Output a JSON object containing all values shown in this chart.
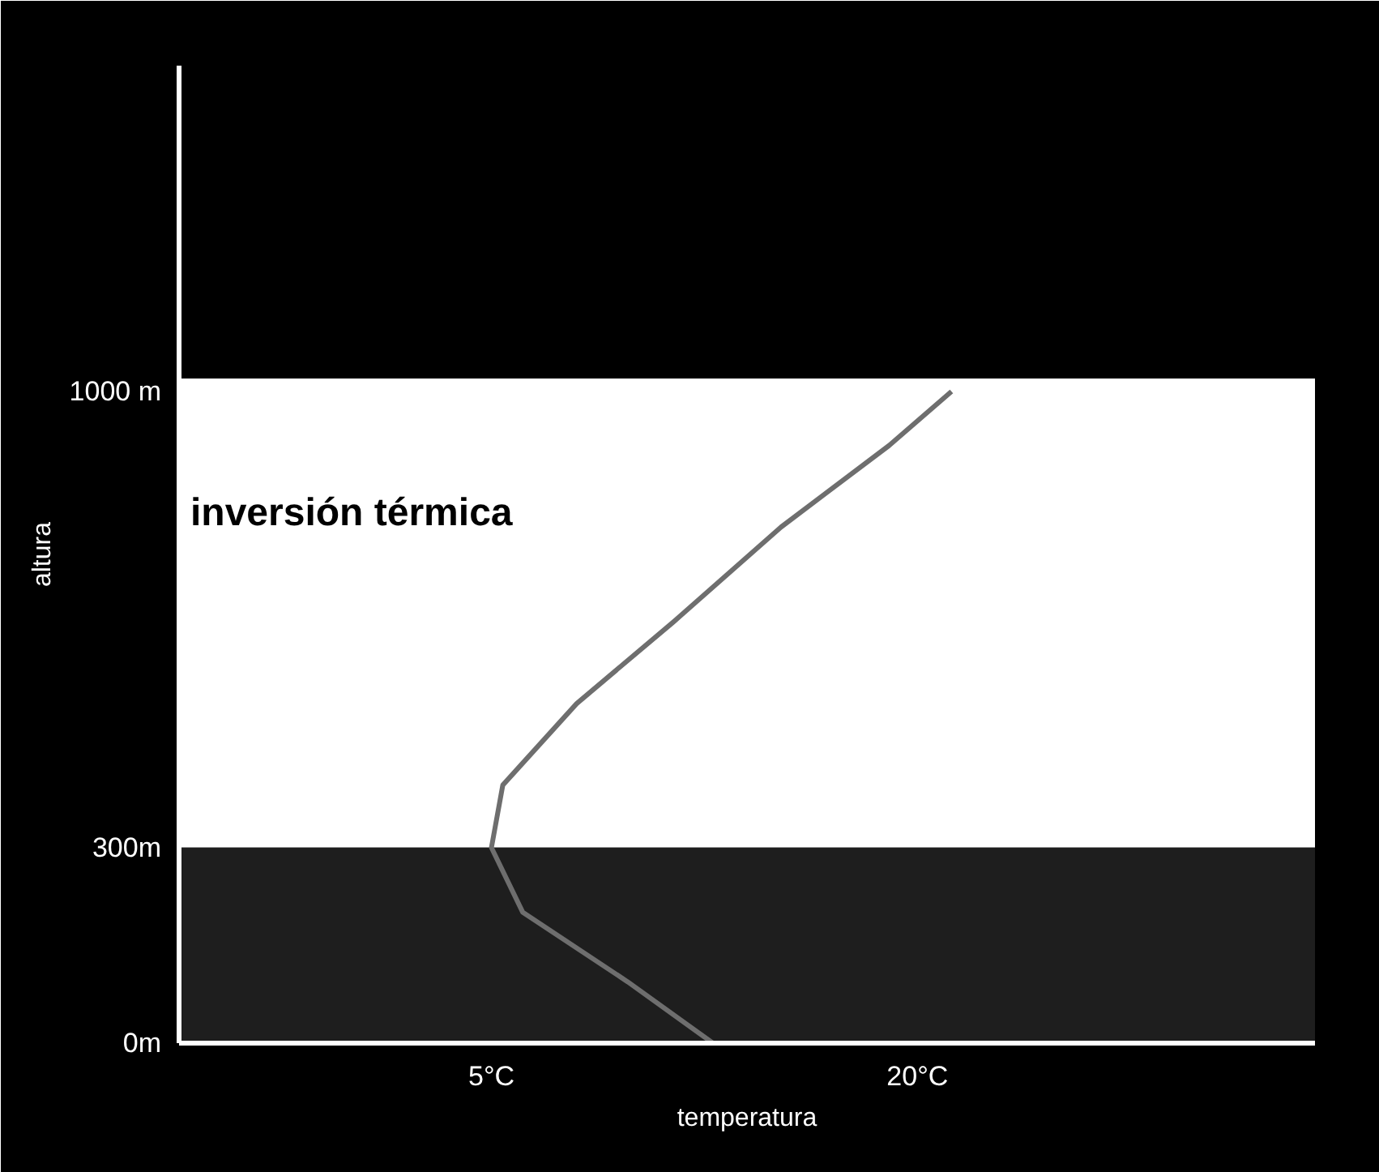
{
  "chart_data": {
    "type": "line",
    "xlabel": "temperatura",
    "ylabel": "altura",
    "x": [
      12.8,
      9.8,
      6.1,
      5,
      5.4,
      8.0,
      11.4,
      15.2,
      19.0,
      21.2
    ],
    "series": [
      {
        "color": "#6e6e6e",
        "values": [
          0,
          94,
          201,
          300,
          396,
          521,
          646,
          792,
          917,
          1000
        ]
      }
    ],
    "xlim": [
      -6,
      34
    ],
    "ylim": [
      0,
      1500
    ],
    "xticks": [
      {
        "value": 5,
        "label": "5°C"
      },
      {
        "value": 20,
        "label": "20°C"
      }
    ],
    "yticks": [
      {
        "value": 0,
        "label": "0m"
      },
      {
        "value": 300,
        "label": "300m"
      },
      {
        "value": 1000,
        "label": "1000 m"
      }
    ],
    "bands": [
      {
        "axis": "y",
        "from": 300,
        "to": 1020,
        "label": "inversión térmica",
        "color": "#ffffff"
      },
      {
        "axis": "y",
        "from": 0,
        "to": 300,
        "label": null,
        "color": "#1e1e1e"
      }
    ],
    "line_style": "solid"
  }
}
